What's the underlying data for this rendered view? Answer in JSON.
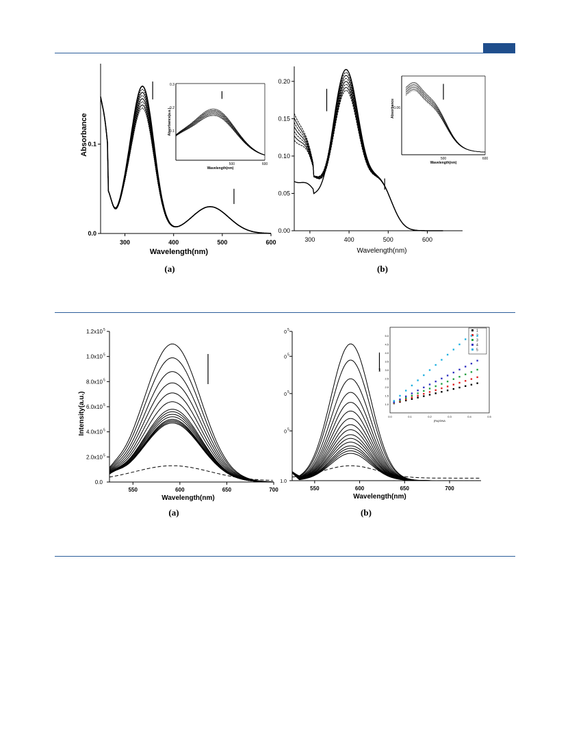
{
  "page": {
    "captions": {
      "fig_top_a": "(a)",
      "fig_top_b": "(b)",
      "fig_bot_a": "(a)",
      "fig_bot_b": "(b)"
    },
    "accent_color": "#1f4e8c"
  },
  "chart_data": [
    {
      "id": "uv_a",
      "type": "line",
      "xlabel": "Wavelength(nm)",
      "ylabel": "Absorbance",
      "xlim": [
        250,
        600
      ],
      "ylim": [
        0,
        0.19
      ],
      "xticks": [
        "300",
        "400",
        "500",
        "600"
      ],
      "yticks": [
        "0.0",
        "0.1"
      ],
      "curve_count": 8,
      "peak": {
        "x": 337,
        "y": 0.162
      },
      "trend": "decreasing",
      "inset": {
        "xlabel": "Wavelength(nm)",
        "ylabel": "Absorbance(a.u.)",
        "xticks": [
          "500",
          "600"
        ],
        "yticks": [
          "0.3",
          "0.2",
          "0.1"
        ]
      }
    },
    {
      "id": "uv_b",
      "type": "line",
      "xlabel": "Wavelength(nm)",
      "ylabel": "",
      "xlim": [
        260,
        690
      ],
      "ylim": [
        0,
        0.22
      ],
      "xticks": [
        "300",
        "400",
        "500",
        "600"
      ],
      "yticks": [
        "0.00",
        "0.05",
        "0.10",
        "0.15",
        "0.20"
      ],
      "curve_count": 8,
      "peak": {
        "x": 392,
        "y": 0.215
      },
      "trend": "decreasing",
      "inset": {
        "xlabel": "Wavelength(nm)",
        "ylabel": "Absorbance",
        "xticks": [
          "500",
          "600"
        ],
        "yticks": [
          "0.06"
        ]
      }
    },
    {
      "id": "fl_a",
      "type": "line",
      "xlabel": "Wavelength(nm)",
      "ylabel": "Intensity(a.u.)",
      "xlim": [
        525,
        700
      ],
      "ylim": [
        0,
        1.2
      ],
      "xticks": [
        "550",
        "600",
        "650",
        "700"
      ],
      "yticks": [
        "0.0",
        "2.0x10",
        "4.0x10",
        "6.0x10",
        "8.0x10",
        "1.0x10",
        "1.2x10"
      ],
      "ytick_exponent": "5",
      "peak_x": 592,
      "peaks": [
        1.1,
        0.99,
        0.88,
        0.79,
        0.71,
        0.64,
        0.58,
        0.56,
        0.54,
        0.52,
        0.5,
        0.49,
        0.48,
        0.47
      ],
      "dashed_peak": 0.12,
      "trend": "decreasing"
    },
    {
      "id": "fl_b",
      "type": "line",
      "xlabel": "Wavelength(nm)",
      "ylabel": "",
      "xlim": [
        525,
        735
      ],
      "ylim": [
        0,
        1.2
      ],
      "xticks": [
        "550",
        "600",
        "650",
        "700"
      ],
      "yticks": [
        "1.0",
        "0",
        "0",
        "0",
        "0"
      ],
      "ytick_exponent": "5",
      "peak_x": 590,
      "peaks": [
        1.1,
        0.97,
        0.82,
        0.71,
        0.63,
        0.56,
        0.5,
        0.45,
        0.41,
        0.37,
        0.34,
        0.31,
        0.28,
        0.26,
        0.24,
        0.22
      ],
      "dashed_peak": 0.1,
      "trend": "decreasing",
      "inset": {
        "type": "scatter",
        "xlabel": "[Ru]/DNA",
        "ylabel": "Io/I",
        "xlim": [
          0,
          0.5
        ],
        "ylim": [
          0.5,
          5.5
        ],
        "xticks": [
          "0.0",
          "0.1",
          "0.2",
          "0.3",
          "0.4",
          "0.5"
        ],
        "yticks": [
          "1.0",
          "1.5",
          "2.0",
          "2.5",
          "3.0",
          "3.5",
          "4.0",
          "4.5",
          "5.0"
        ],
        "x": [
          0.02,
          0.05,
          0.08,
          0.11,
          0.14,
          0.17,
          0.2,
          0.23,
          0.26,
          0.29,
          0.32,
          0.35,
          0.38,
          0.41,
          0.44
        ],
        "series": [
          {
            "name": "1",
            "color": "#000000",
            "marker": "square",
            "slope": 2.8
          },
          {
            "name": "2",
            "color": "#e02020",
            "marker": "circle",
            "slope": 3.6
          },
          {
            "name": "3",
            "color": "#20a040",
            "marker": "triangle-up",
            "slope": 4.6
          },
          {
            "name": "4",
            "color": "#3030c0",
            "marker": "triangle-down",
            "slope": 5.8
          },
          {
            "name": "5",
            "color": "#20b0e0",
            "marker": "diamond",
            "slope": 10.0
          }
        ]
      }
    }
  ]
}
